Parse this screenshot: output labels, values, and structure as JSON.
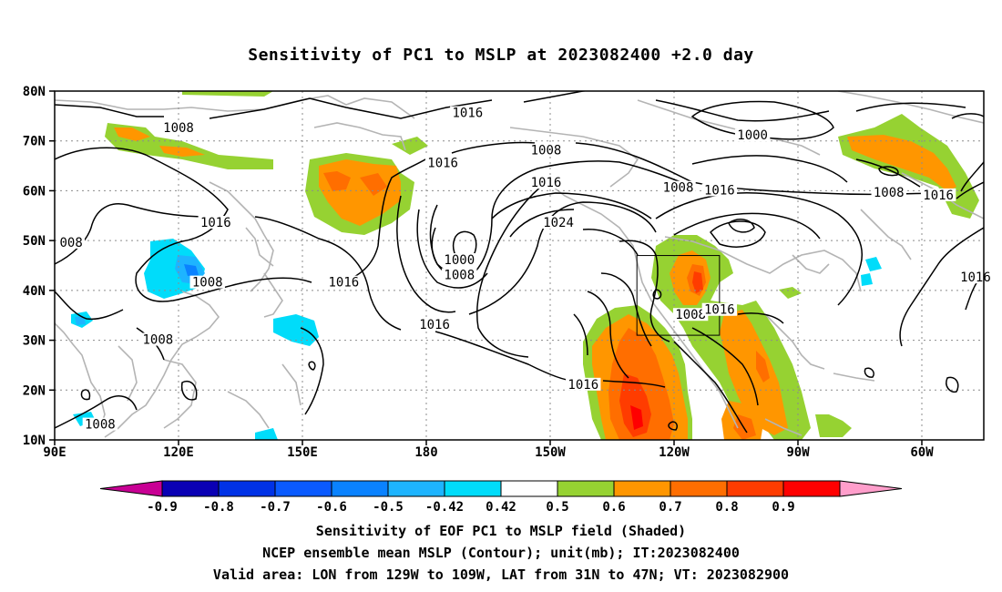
{
  "title": "Sensitivity of PC1 to MSLP at 2023082400 +2.0 day",
  "latitude_labels": [
    "80N",
    "70N",
    "60N",
    "50N",
    "40N",
    "30N",
    "20N",
    "10N"
  ],
  "longitude_labels": [
    "90E",
    "120E",
    "150E",
    "180",
    "150W",
    "120W",
    "90W",
    "60W"
  ],
  "contour_labels": [
    {
      "text": "1016",
      "lon": -170,
      "lat": 75.5
    },
    {
      "text": "1008",
      "lon": 120,
      "lat": 72.5
    },
    {
      "text": "1016",
      "lon": -176,
      "lat": 65.5
    },
    {
      "text": "1008",
      "lon": -151,
      "lat": 68
    },
    {
      "text": "1000",
      "lon": -101,
      "lat": 71
    },
    {
      "text": "1016",
      "lon": -151,
      "lat": 61.5
    },
    {
      "text": "1008",
      "lon": -119,
      "lat": 60.5
    },
    {
      "text": "1016",
      "lon": -109,
      "lat": 60
    },
    {
      "text": "1008",
      "lon": -68,
      "lat": 59.5
    },
    {
      "text": "1016",
      "lon": -56,
      "lat": 59
    },
    {
      "text": "1016",
      "lon": 129,
      "lat": 53.5
    },
    {
      "text": "008",
      "lon": 94,
      "lat": 49.5
    },
    {
      "text": "1024",
      "lon": -148,
      "lat": 53.5
    },
    {
      "text": "1000",
      "lon": -172,
      "lat": 46
    },
    {
      "text": "1008",
      "lon": -172,
      "lat": 43
    },
    {
      "text": "1016",
      "lon": -47,
      "lat": 42.5
    },
    {
      "text": "1008",
      "lon": 127,
      "lat": 41.5
    },
    {
      "text": "1016",
      "lon": 160,
      "lat": 41.5
    },
    {
      "text": "1008",
      "lon": -116,
      "lat": 35
    },
    {
      "text": "1016",
      "lon": -109,
      "lat": 36
    },
    {
      "text": "1016",
      "lon": -178,
      "lat": 33
    },
    {
      "text": "1008",
      "lon": 115,
      "lat": 30
    },
    {
      "text": "1016",
      "lon": -142,
      "lat": 21
    },
    {
      "text": "1008",
      "lon": 101,
      "lat": 13
    }
  ],
  "validation_box": {
    "lon_min": -129,
    "lon_max": -109,
    "lat_min": 31,
    "lat_max": 47
  },
  "colorbar": {
    "labels": [
      "-0.9",
      "-0.8",
      "-0.7",
      "-0.6",
      "-0.5",
      "-0.42",
      "0.42",
      "0.5",
      "0.6",
      "0.7",
      "0.8",
      "0.9"
    ],
    "colors": [
      "#c80094",
      "#0a00b4",
      "#0032e6",
      "#0a5aff",
      "#0a82ff",
      "#1eb4ff",
      "#00dcfa",
      "#ffffff",
      "#96d232",
      "#ff9600",
      "#ff6e00",
      "#ff3c00",
      "#ff0000",
      "#ff9ecb"
    ]
  },
  "captions": {
    "line1": "Sensitivity of EOF PC1 to MSLP field (Shaded)",
    "line2": "NCEP ensemble mean MSLP (Contour); unit(mb); IT:2023082400",
    "line3": "Valid area: LON from 129W to 109W, LAT from 31N to 47N; VT: 2023082900"
  }
}
